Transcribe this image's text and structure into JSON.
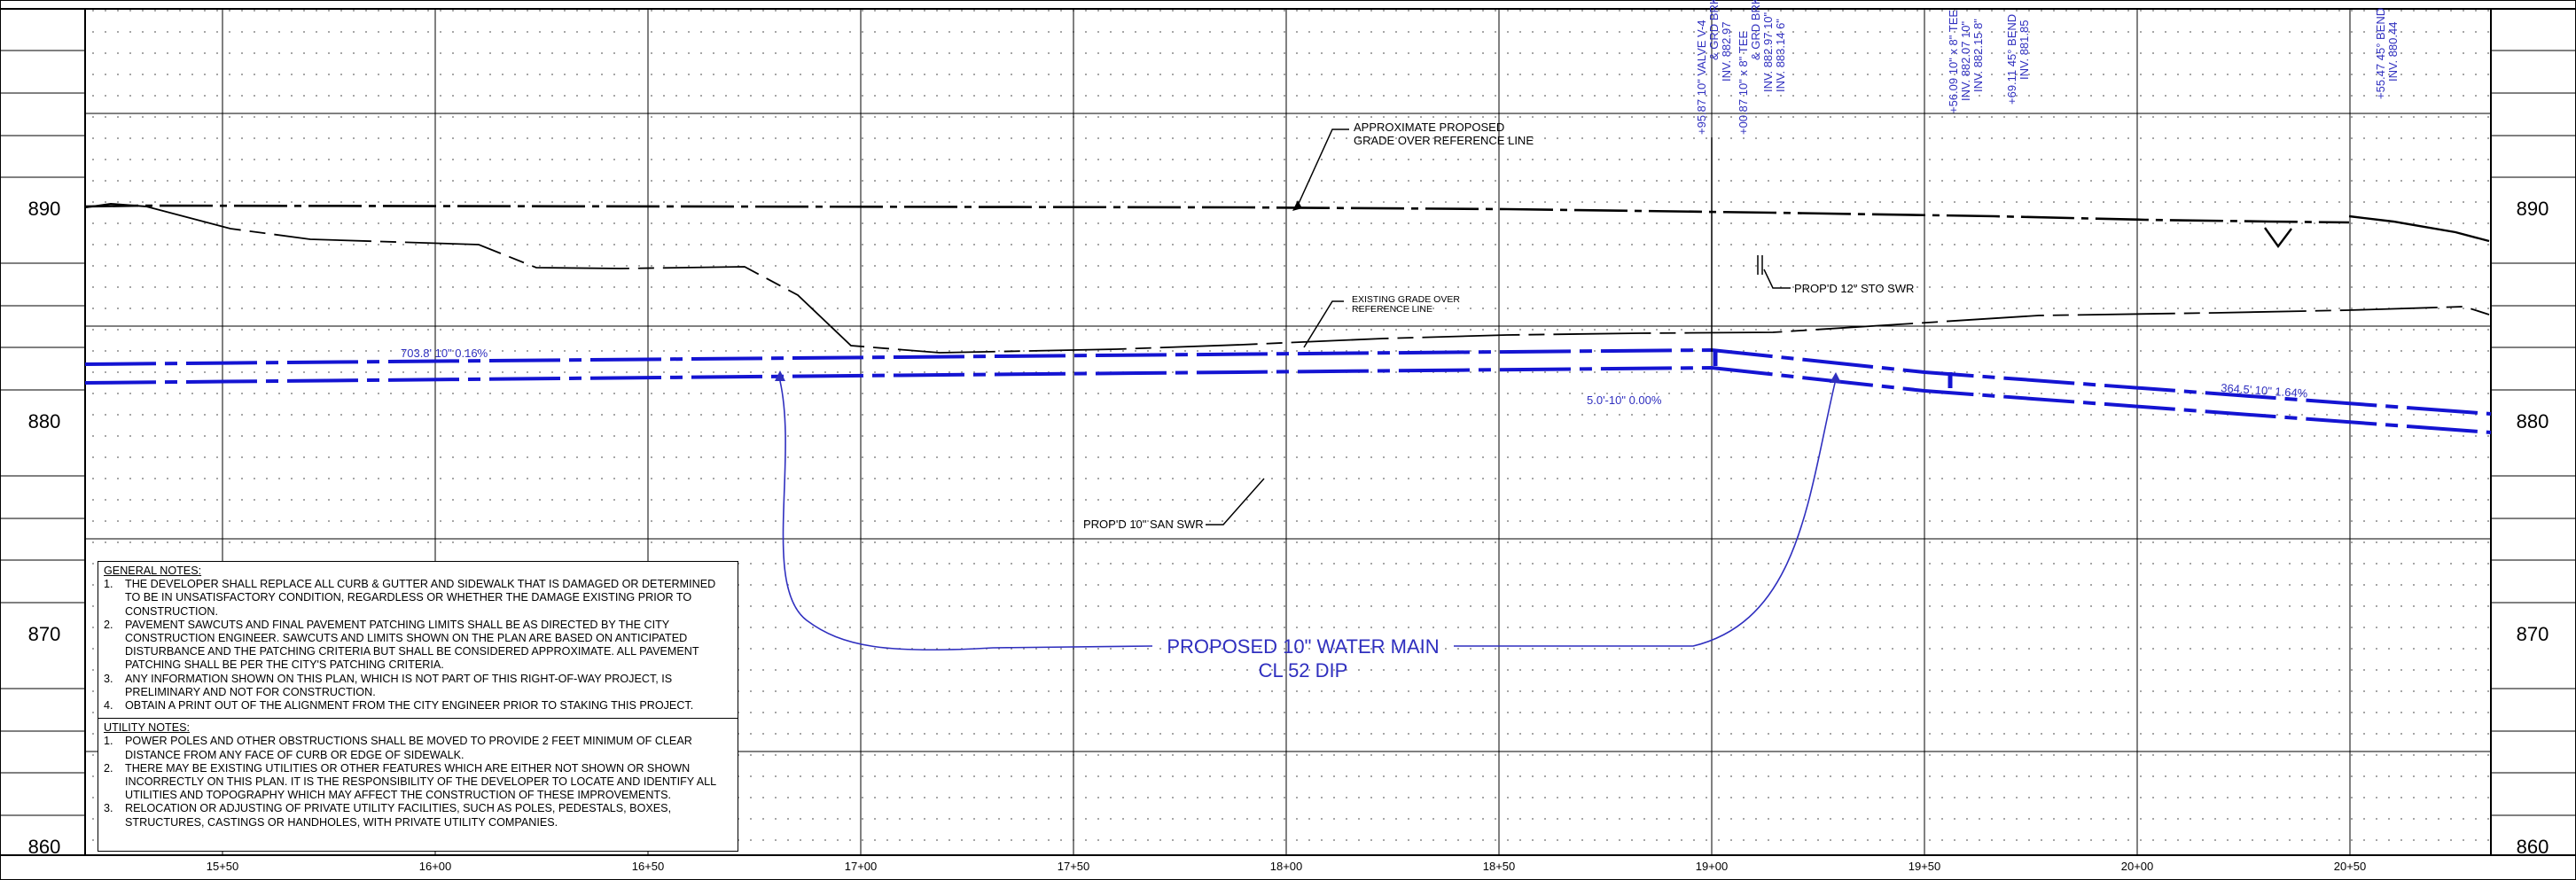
{
  "elevations": [
    "890",
    "880",
    "870",
    "860"
  ],
  "stations": [
    "15+50",
    "16+00",
    "16+50",
    "17+00",
    "17+50",
    "18+00",
    "18+50",
    "19+00",
    "19+50",
    "20+00",
    "20+50"
  ],
  "vertical_labels": [
    "+95.87 10\" VALVE V-4",
    "& GRD BRK",
    "INV. 882.97",
    "+00.87 10\" x 8\" TEE",
    "& GRD BRK",
    "INV. 882.97 10\"",
    "INV. 883.14 6\"",
    "+56.09 10\" x 8\" TEE",
    "INV. 882.07 10\"",
    "INV. 882.15 8\"",
    "+69.11 45° BEND",
    "INV. 881.85",
    "+55.47 45° BEND",
    "INV. 880.44"
  ],
  "callouts": {
    "approx_grade_1": "APPROXIMATE PROPOSED",
    "approx_grade_2": "GRADE OVER REFERENCE LINE",
    "existing_grade_1": "EXISTING GRADE OVER",
    "existing_grade_2": "REFERENCE LINE",
    "sto_swr": "PROP'D 12\" STO SWR",
    "san_swr": "PROP'D 10\" SAN SWR",
    "pipe_left": "703.8'  10\"  0.16%",
    "pipe_mid": "5.0'-10\" 0.00%",
    "pipe_right": "364.5'  10\"  1.64%",
    "water_main_1": "PROPOSED 10\" WATER MAIN",
    "water_main_2": "CL 52 DIP"
  },
  "colors": {
    "pipe": "#1414d2",
    "annotation": "#2f2fbf",
    "linework": "#000000"
  },
  "general_notes": {
    "title": "GENERAL NOTES:",
    "items": [
      {
        "num": "1.",
        "text": "THE DEVELOPER SHALL REPLACE ALL CURB & GUTTER AND SIDEWALK THAT IS DAMAGED OR DETERMINED TO BE IN UNSATISFACTORY CONDITION, REGARDLESS OR WHETHER THE DAMAGE EXISTING PRIOR TO CONSTRUCTION."
      },
      {
        "num": "2.",
        "text": "PAVEMENT SAWCUTS AND FINAL PAVEMENT PATCHING LIMITS SHALL BE AS DIRECTED BY THE CITY CONSTRUCTION ENGINEER. SAWCUTS AND LIMITS SHOWN ON THE PLAN ARE BASED ON ANTICIPATED DISTURBANCE AND THE PATCHING CRITERIA BUT SHALL BE CONSIDERED APPROXIMATE. ALL PAVEMENT PATCHING SHALL BE PER THE CITY'S PATCHING CRITERIA."
      },
      {
        "num": "3.",
        "text": "ANY INFORMATION SHOWN ON THIS PLAN, WHICH IS NOT PART OF THIS RIGHT-OF-WAY PROJECT, IS PRELIMINARY AND NOT FOR CONSTRUCTION."
      },
      {
        "num": "4.",
        "text": "OBTAIN A PRINT OUT OF THE ALIGNMENT FROM THE CITY ENGINEER PRIOR TO STAKING THIS PROJECT."
      }
    ]
  },
  "utility_notes": {
    "title": "UTILITY NOTES:",
    "items": [
      {
        "num": "1.",
        "text": "POWER POLES AND OTHER OBSTRUCTIONS SHALL BE MOVED TO PROVIDE 2 FEET MINIMUM OF CLEAR DISTANCE FROM ANY FACE OF CURB OR EDGE OF SIDEWALK."
      },
      {
        "num": "2.",
        "text": "THERE MAY BE EXISTING UTILITIES OR OTHER FEATURES WHICH ARE EITHER NOT SHOWN OR SHOWN INCORRECTLY ON THIS PLAN. IT IS THE RESPONSIBILITY OF THE DEVELOPER TO LOCATE AND IDENTIFY ALL UTILITIES AND TOPOGRAPHY WHICH MAY AFFECT THE CONSTRUCTION OF THESE IMPROVEMENTS."
      },
      {
        "num": "3.",
        "text": "RELOCATION OR ADJUSTING OF PRIVATE UTILITY FACILITIES, SUCH AS POLES, PEDESTALS, BOXES, STRUCTURES, CASTINGS OR HANDHOLES, WITH PRIVATE UTILITY COMPANIES."
      }
    ]
  }
}
